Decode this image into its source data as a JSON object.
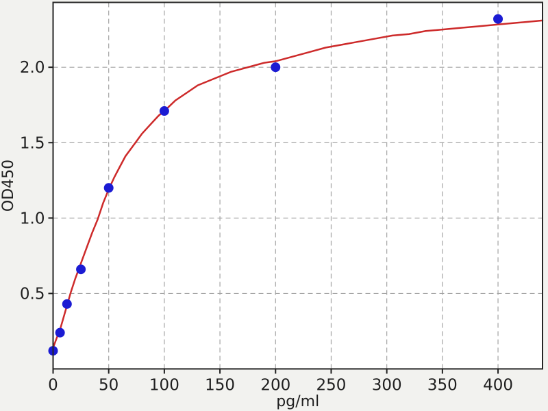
{
  "figure": {
    "background": "#f2f2ef",
    "plot_background": "#ffffff",
    "spine_color": "#262626",
    "grid_color": "#a3a3a3",
    "tick_color": "#1f1f1f",
    "text_color": "#1f1f1f"
  },
  "chart_data": {
    "type": "scatter",
    "title": "",
    "xlabel": "pg/ml",
    "ylabel": "OD450",
    "xlim": [
      0,
      440
    ],
    "ylim": [
      0,
      2.43
    ],
    "grid": "dashed",
    "legend_position": "none",
    "x_ticks": [
      0,
      50,
      100,
      150,
      200,
      250,
      300,
      350,
      400
    ],
    "x_tick_labels": [
      "0",
      "50",
      "100",
      "150",
      "200",
      "250",
      "300",
      "350",
      "400"
    ],
    "y_ticks": [
      0.5,
      1.0,
      1.5,
      2.0
    ],
    "y_tick_labels": [
      "0.5",
      "1.0",
      "1.5",
      "2.0"
    ],
    "series": [
      {
        "name": "standard-points",
        "type": "scatter",
        "color": "#1b1bd3",
        "marker": "circle",
        "x": [
          0,
          6.25,
          12.5,
          25,
          50,
          100,
          200,
          400
        ],
        "y": [
          0.12,
          0.24,
          0.43,
          0.66,
          1.2,
          1.71,
          2.0,
          2.32
        ]
      },
      {
        "name": "fitted-curve",
        "type": "line",
        "color": "#cd2a2a",
        "points": [
          [
            0,
            0.14
          ],
          [
            3,
            0.2
          ],
          [
            6.25,
            0.26
          ],
          [
            9,
            0.33
          ],
          [
            12.5,
            0.42
          ],
          [
            16,
            0.51
          ],
          [
            20,
            0.6
          ],
          [
            25,
            0.7
          ],
          [
            30,
            0.8
          ],
          [
            35,
            0.9
          ],
          [
            40,
            0.99
          ],
          [
            45,
            1.1
          ],
          [
            50,
            1.19
          ],
          [
            55,
            1.27
          ],
          [
            60,
            1.34
          ],
          [
            65,
            1.41
          ],
          [
            70,
            1.46
          ],
          [
            75,
            1.51
          ],
          [
            80,
            1.56
          ],
          [
            85,
            1.6
          ],
          [
            90,
            1.64
          ],
          [
            95,
            1.68
          ],
          [
            100,
            1.71
          ],
          [
            110,
            1.78
          ],
          [
            120,
            1.83
          ],
          [
            130,
            1.88
          ],
          [
            140,
            1.91
          ],
          [
            150,
            1.94
          ],
          [
            160,
            1.97
          ],
          [
            170,
            1.99
          ],
          [
            180,
            2.01
          ],
          [
            190,
            2.03
          ],
          [
            200,
            2.04
          ],
          [
            215,
            2.07
          ],
          [
            230,
            2.1
          ],
          [
            245,
            2.13
          ],
          [
            260,
            2.15
          ],
          [
            275,
            2.17
          ],
          [
            290,
            2.19
          ],
          [
            305,
            2.21
          ],
          [
            320,
            2.22
          ],
          [
            335,
            2.24
          ],
          [
            350,
            2.25
          ],
          [
            365,
            2.26
          ],
          [
            380,
            2.27
          ],
          [
            395,
            2.28
          ],
          [
            410,
            2.29
          ],
          [
            425,
            2.3
          ],
          [
            440,
            2.31
          ]
        ]
      }
    ]
  }
}
